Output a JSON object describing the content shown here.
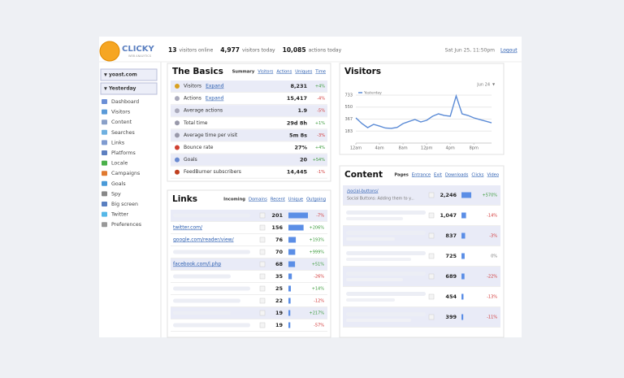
{
  "header": {
    "logo": "CLICKY",
    "logo_tagline": "WEB ANALYTICS",
    "stats": [
      {
        "value": "13",
        "label": "visitors online"
      },
      {
        "value": "4,977",
        "label": "visitors today"
      },
      {
        "value": "10,085",
        "label": "actions today"
      }
    ],
    "datetime": "Sat Jun 25, 11:50pm",
    "logout": "Logout"
  },
  "sidebar": {
    "site": "yoast.com",
    "date": "Yesterday",
    "nav": [
      "Dashboard",
      "Visitors",
      "Content",
      "Searches",
      "Links",
      "Platforms",
      "Locale",
      "Campaigns",
      "Goals",
      "Spy",
      "Big screen",
      "Twitter",
      "Preferences"
    ]
  },
  "basics": {
    "title": "The Basics",
    "tabs": [
      "Summary",
      "Visitors",
      "Actions",
      "Uniques",
      "Time"
    ],
    "rows": [
      {
        "label": "Visitors",
        "link": "Expand",
        "value": "8,231",
        "change": "+4%"
      },
      {
        "label": "Actions",
        "link": "Expand",
        "value": "15,417",
        "change": "-4%"
      },
      {
        "label": "Average actions",
        "value": "1.9",
        "change": "-5%"
      },
      {
        "label": "Total time",
        "value": "29d 8h",
        "change": "+1%"
      },
      {
        "label": "Average time per visit",
        "value": "5m 8s",
        "change": "-3%"
      },
      {
        "label": "Bounce rate",
        "value": "27%",
        "change": "+4%"
      },
      {
        "label": "Goals",
        "value": "20",
        "change": "+54%"
      },
      {
        "label": "FeedBurner subscribers",
        "value": "14,445",
        "change": "-1%"
      }
    ]
  },
  "visitors": {
    "title": "Visitors",
    "date": "Jun 24",
    "chart": {
      "type": "line",
      "series": [
        {
          "name": "Yesterday",
          "color": "#5b8bd6",
          "values": [
            385,
            300,
            236,
            286,
            260,
            230,
            224,
            240,
            298,
            330,
            360,
            323,
            348,
            410,
            447,
            422,
            410,
            720,
            447,
            422,
            385,
            360,
            335,
            310
          ]
        }
      ],
      "x": [
        0,
        1,
        2,
        3,
        4,
        5,
        6,
        7,
        8,
        9,
        10,
        11,
        12,
        13,
        14,
        15,
        16,
        17,
        18,
        19,
        20,
        21,
        22,
        23
      ],
      "xlim": [
        0,
        23
      ],
      "xticks": [
        {
          "value": 0,
          "label": "12am"
        },
        {
          "value": 4,
          "label": "4am"
        },
        {
          "value": 8,
          "label": "8am"
        },
        {
          "value": 12,
          "label": "12pm"
        },
        {
          "value": 16,
          "label": "4pm"
        },
        {
          "value": 20,
          "label": "8pm"
        }
      ],
      "ylim": [
        0,
        733
      ],
      "yticks": [
        183,
        367,
        550,
        733
      ],
      "grid": true
    }
  },
  "links": {
    "title": "Links",
    "tabs": [
      "Incoming",
      "Domains",
      "Recent",
      "Unique",
      "Outgoing"
    ],
    "labels": [
      null,
      "twitter.com/",
      "google.com/reader/view/",
      null,
      "facebook.com/l.php",
      null,
      null,
      null,
      null,
      null
    ],
    "values": [
      201,
      156,
      76,
      70,
      68,
      35,
      25,
      22,
      19,
      19
    ],
    "changes": [
      "-7%",
      "+206%",
      "+193%",
      "+999%",
      "+51%",
      "-26%",
      "+14%",
      "-12%",
      "+217%",
      "-57%"
    ]
  },
  "content": {
    "title": "Content",
    "tabs": [
      "Pages",
      "Entrance",
      "Exit",
      "Downloads",
      "Clicks",
      "Video"
    ],
    "labels": [
      "/social-buttons/",
      null,
      null,
      null,
      null,
      null,
      null
    ],
    "sublabels": [
      "Social Buttons: Adding them to y...",
      null,
      null,
      null,
      null,
      null,
      null
    ],
    "values": [
      2246,
      1047,
      837,
      725,
      689,
      454,
      399
    ],
    "value_labels": [
      "2,246",
      "1,047",
      "837",
      "725",
      "689",
      "454",
      "399"
    ],
    "changes": [
      "+570%",
      "-14%",
      "-3%",
      "0%",
      "-22%",
      "-13%",
      "-11%"
    ]
  }
}
